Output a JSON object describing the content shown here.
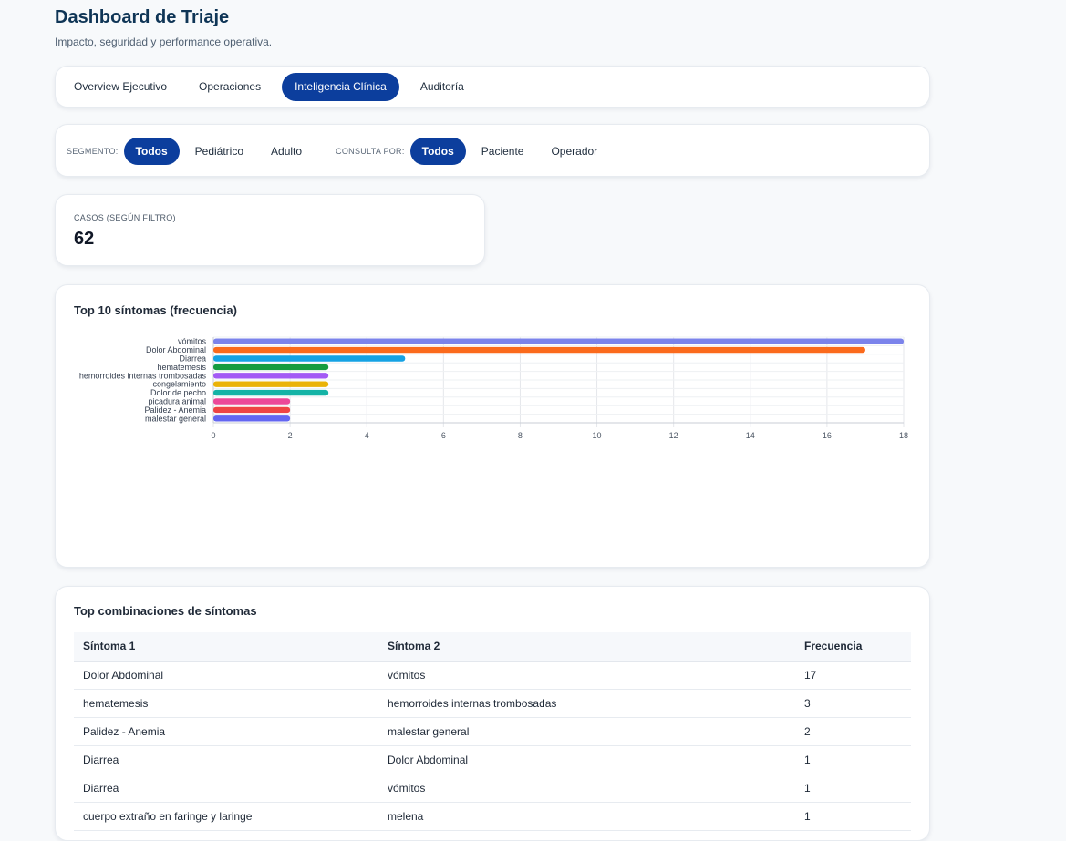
{
  "header": {
    "title": "Dashboard de Triaje",
    "subtitle": "Impacto, seguridad y performance operativa."
  },
  "tabs": [
    {
      "label": "Overview Ejecutivo",
      "active": false
    },
    {
      "label": "Operaciones",
      "active": false
    },
    {
      "label": "Inteligencia Clínica",
      "active": true
    },
    {
      "label": "Auditoría",
      "active": false
    }
  ],
  "filters": {
    "segment_label": "SEGMENTO:",
    "segment_options": [
      {
        "label": "Todos",
        "active": true
      },
      {
        "label": "Pediátrico",
        "active": false
      },
      {
        "label": "Adulto",
        "active": false
      }
    ],
    "query_label": "CONSULTA POR:",
    "query_options": [
      {
        "label": "Todos",
        "active": true
      },
      {
        "label": "Paciente",
        "active": false
      },
      {
        "label": "Operador",
        "active": false
      }
    ]
  },
  "kpi": {
    "label": "CASOS (SEGÚN FILTRO)",
    "value": "62"
  },
  "chart_card": {
    "title": "Top 10 síntomas (frecuencia)"
  },
  "chart_data": {
    "type": "bar",
    "orientation": "horizontal",
    "title": "Top 10 síntomas (frecuencia)",
    "xlabel": "",
    "ylabel": "",
    "xlim": [
      0,
      18
    ],
    "xticks": [
      0,
      2,
      4,
      6,
      8,
      10,
      12,
      14,
      16,
      18
    ],
    "grid": true,
    "categories": [
      "vómitos",
      "Dolor Abdominal",
      "Diarrea",
      "hematemesis",
      "hemorroides internas trombosadas",
      "congelamiento",
      "Dolor de pecho",
      "picadura animal",
      "Palidez - Anemia",
      "malestar general"
    ],
    "values": [
      18,
      17,
      5,
      3,
      3,
      3,
      3,
      2,
      2,
      2
    ],
    "colors": [
      "#7b83eb",
      "#fb6a1c",
      "#15a2e4",
      "#169c3f",
      "#a35af5",
      "#eab308",
      "#14b3a6",
      "#ec4899",
      "#ef4444",
      "#6366f1"
    ]
  },
  "table_card": {
    "title": "Top combinaciones de síntomas",
    "columns": [
      "Síntoma 1",
      "Síntoma 2",
      "Frecuencia"
    ],
    "rows": [
      [
        "Dolor Abdominal",
        "vómitos",
        "17"
      ],
      [
        "hematemesis",
        "hemorroides internas trombosadas",
        "3"
      ],
      [
        "Palidez - Anemia",
        "malestar general",
        "2"
      ],
      [
        "Diarrea",
        "Dolor Abdominal",
        "1"
      ],
      [
        "Diarrea",
        "vómitos",
        "1"
      ],
      [
        "cuerpo extraño en faringe y laringe",
        "melena",
        "1"
      ]
    ]
  }
}
